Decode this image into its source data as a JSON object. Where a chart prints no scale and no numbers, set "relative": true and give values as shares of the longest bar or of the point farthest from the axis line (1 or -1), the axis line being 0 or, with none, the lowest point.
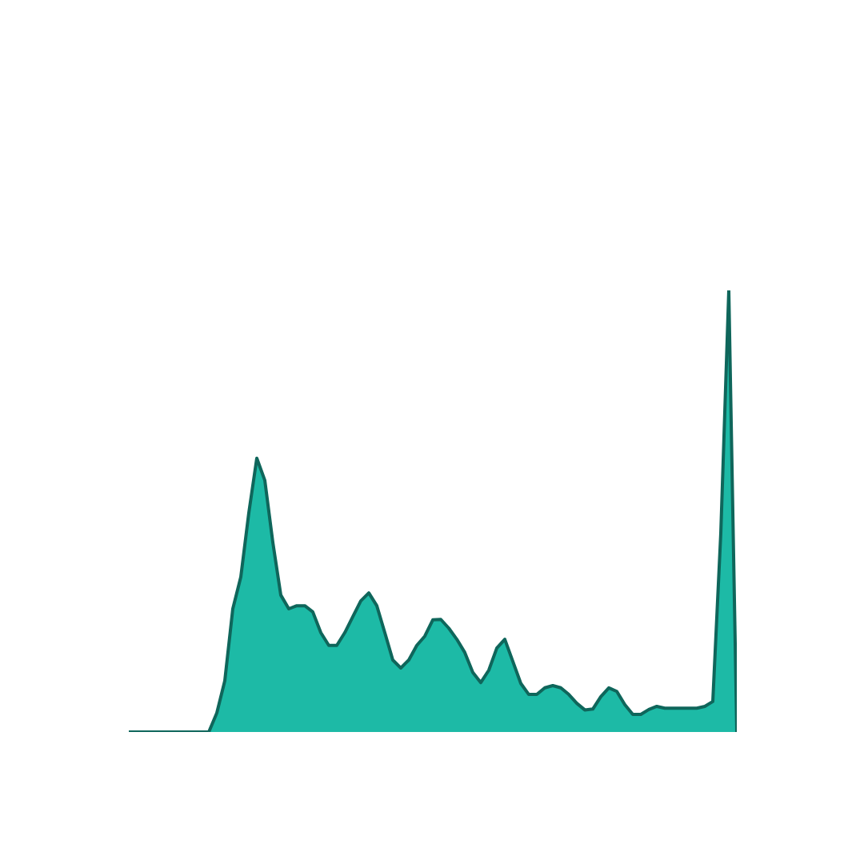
{
  "chart_data": {
    "type": "area",
    "relative": true,
    "grid": false,
    "categories": [
      null,
      null,
      null,
      null,
      null,
      null,
      null,
      null,
      null,
      null,
      null,
      null,
      null,
      null,
      null,
      null,
      null,
      null,
      null,
      null,
      null,
      null,
      null,
      null,
      null,
      null,
      null,
      null,
      null,
      null,
      null,
      null,
      null,
      null,
      null,
      null,
      null,
      null,
      null,
      null,
      null,
      null,
      null,
      null,
      null,
      null,
      null,
      null,
      null,
      null,
      null,
      null,
      null,
      null,
      null,
      null,
      null,
      null,
      null,
      null,
      null,
      null,
      null,
      null,
      null,
      null,
      null,
      null,
      null,
      null,
      null,
      null,
      null,
      null,
      null,
      null,
      null
    ],
    "series": [
      {
        "color": "#1dbaa6",
        "values": [
          0,
          0,
          0,
          0,
          0,
          0,
          0,
          0,
          0,
          0,
          0,
          0.043,
          0.116,
          0.279,
          0.351,
          0.496,
          0.62,
          0.57,
          0.43,
          0.31,
          0.279,
          0.286,
          0.286,
          0.272,
          0.225,
          0.196,
          0.196,
          0.225,
          0.261,
          0.297,
          0.315,
          0.286,
          0.225,
          0.163,
          0.145,
          0.163,
          0.196,
          0.217,
          0.254,
          0.255,
          0.235,
          0.21,
          0.18,
          0.135,
          0.112,
          0.14,
          0.19,
          0.21,
          0.16,
          0.11,
          0.085,
          0.085,
          0.1,
          0.105,
          0.1,
          0.085,
          0.065,
          0.05,
          0.052,
          0.08,
          0.1,
          0.092,
          0.062,
          0.04,
          0.04,
          0.051,
          0.058,
          0.054,
          0.054,
          0.054,
          0.054,
          0.054,
          0.058,
          0.069,
          0.45,
          1,
          0
        ]
      }
    ]
  }
}
